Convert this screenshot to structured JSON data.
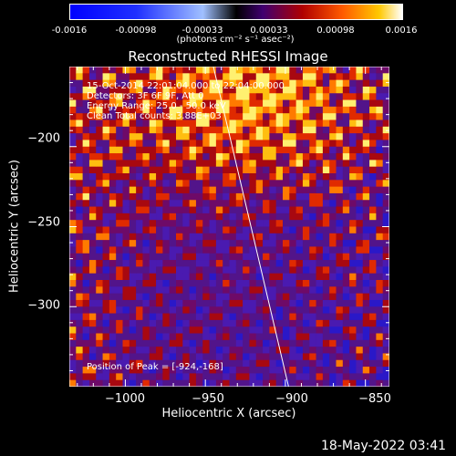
{
  "colors": {
    "colormap": [
      "#0000ff",
      "#3050ff",
      "#8fb0ff",
      "#ffffff",
      "#ffd000",
      "#ff6a00",
      "#d41400",
      "#6a0090",
      "#2000ff"
    ],
    "background": "#000000",
    "foreground": "#ffffff"
  },
  "colorbar": {
    "ticks": [
      "-0.0016",
      "-0.00098",
      "-0.00033",
      "0.00033",
      "0.00098",
      "0.0016"
    ],
    "units_label": "(photons cm⁻² s⁻¹ asec⁻²)",
    "range": [
      -0.0016,
      0.0016
    ]
  },
  "info": {
    "line1": "15-Oct-2014 22:01:04.000 to 22:04:00.000",
    "line2": "Detectors: 3F 6F 9F, Att 0",
    "line3": "Energy Range: 25.0 - 50.0 keV",
    "line4": "Clean    Total counts: 3.88E+03",
    "peak": "Position of Peak = [-924,-168]"
  },
  "timestamp": "18-May-2022 03:41",
  "chart_data": {
    "type": "heatmap",
    "title": "Reconstructed RHESSI Image",
    "xlabel": "Heliocentric X (arcsec)",
    "ylabel": "Heliocentric Y (arcsec)",
    "x_ticks": [
      "−1000",
      "−950",
      "−900",
      "−850"
    ],
    "x_tick_values": [
      -1000,
      -950,
      -900,
      -850
    ],
    "y_ticks": [
      "−200",
      "−250",
      "−300"
    ],
    "y_tick_values": [
      -200,
      -250,
      -300
    ],
    "xlim": [
      -1035,
      -835
    ],
    "ylim": [
      -350,
      -150
    ],
    "limb_line": {
      "x": [
        -945,
        -898
      ],
      "y": [
        -150,
        -350
      ]
    },
    "peak_position": [
      -924,
      -168
    ],
    "total_counts": 3880,
    "energy_range_keV": [
      25.0,
      50.0
    ]
  }
}
